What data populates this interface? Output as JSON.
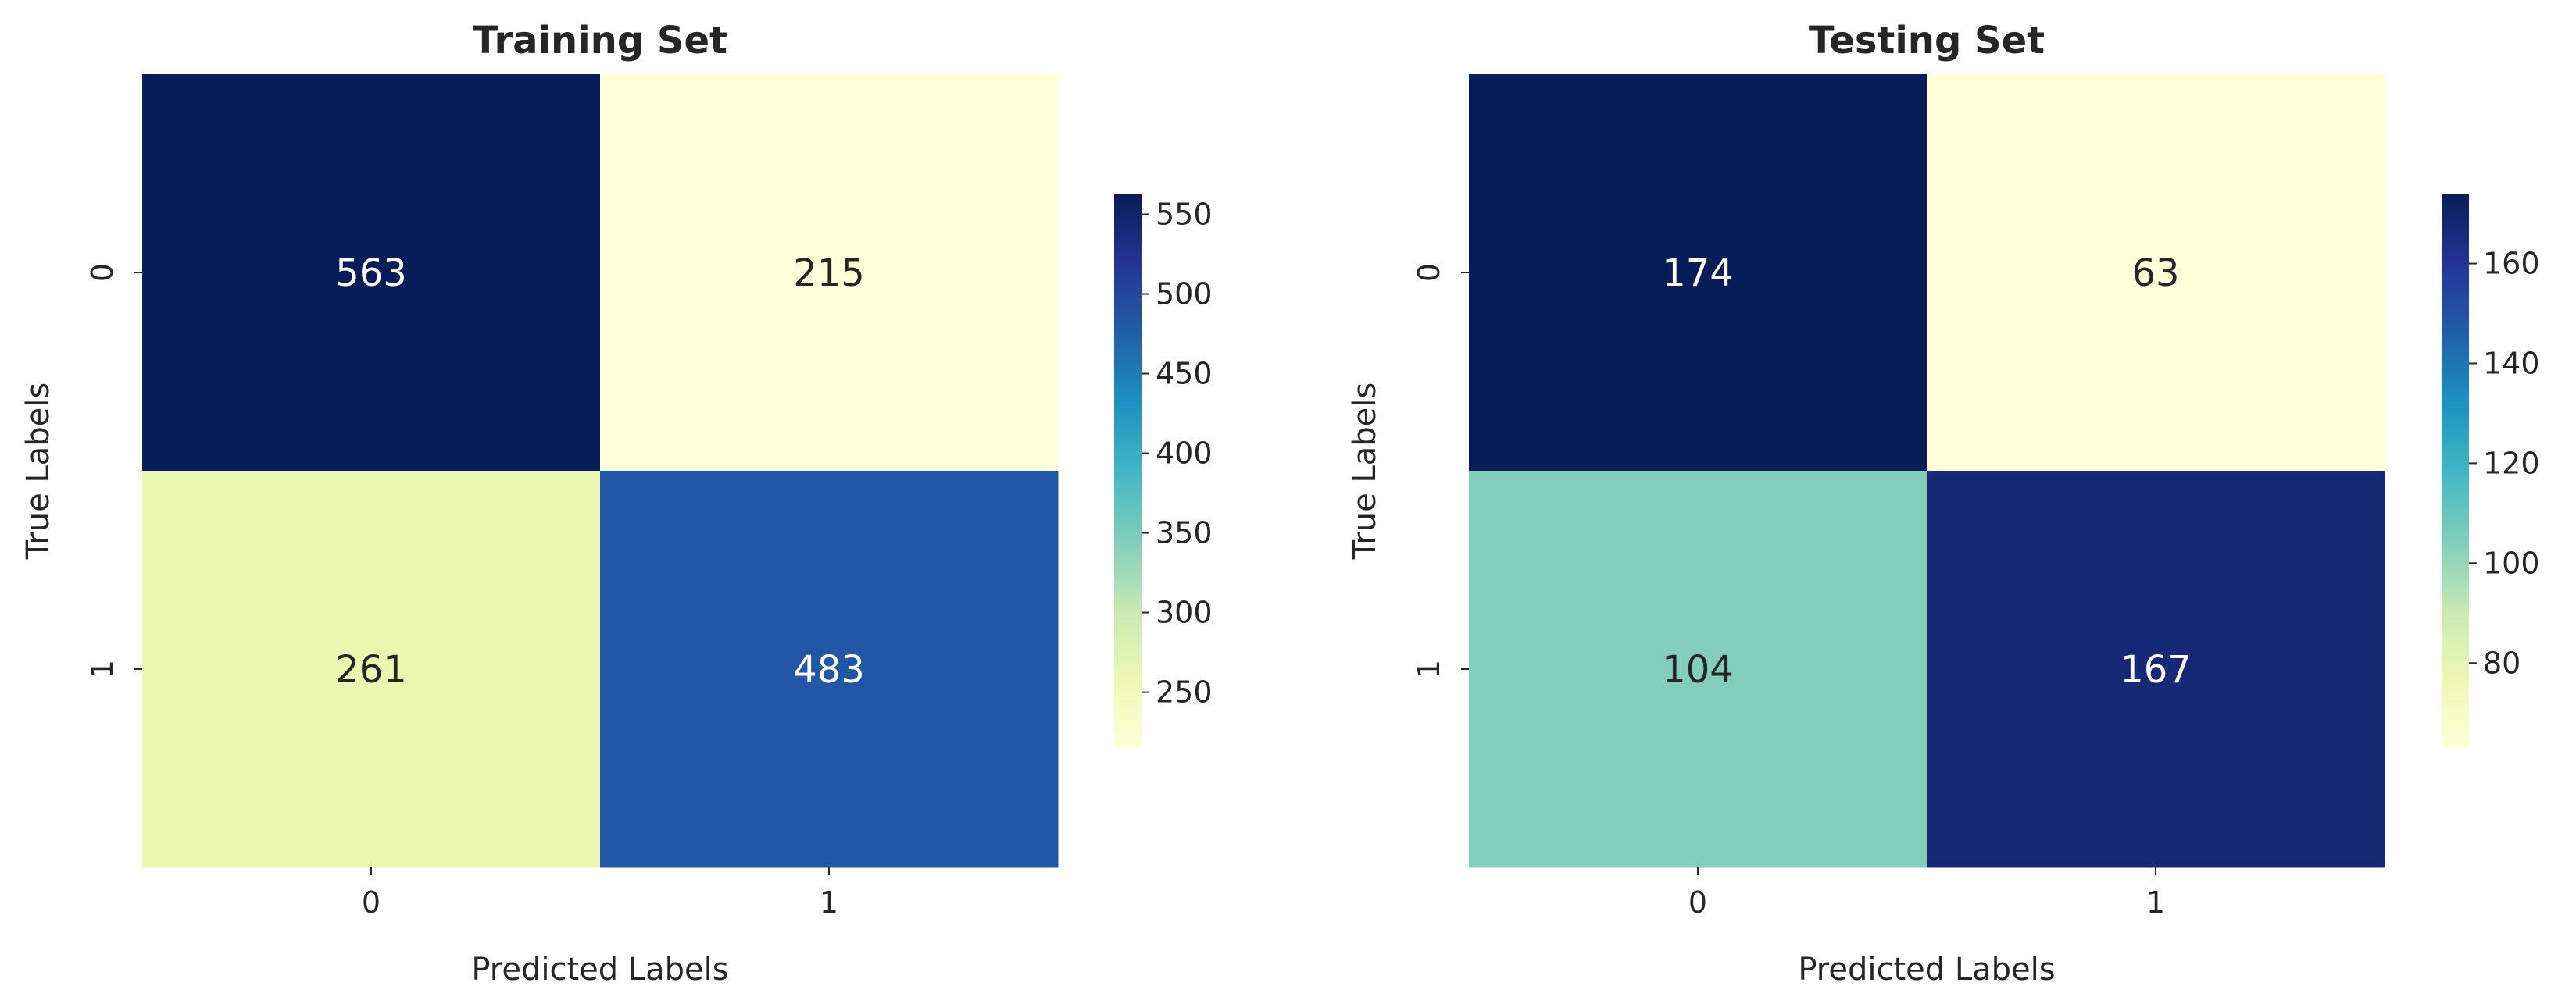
{
  "chart_data": [
    {
      "type": "heatmap",
      "title": "Training Set",
      "xlabel": "Predicted Labels",
      "ylabel": "True Labels",
      "x_categories": [
        "0",
        "1"
      ],
      "y_categories": [
        "0",
        "1"
      ],
      "values": [
        [
          563,
          215
        ],
        [
          261,
          483
        ]
      ],
      "colormap": "YlGnBu",
      "colorbar": {
        "range": [
          215,
          563
        ],
        "ticks": [
          250,
          300,
          350,
          400,
          450,
          500,
          550
        ]
      }
    },
    {
      "type": "heatmap",
      "title": "Testing Set",
      "xlabel": "Predicted Labels",
      "ylabel": "True Labels",
      "x_categories": [
        "0",
        "1"
      ],
      "y_categories": [
        "0",
        "1"
      ],
      "values": [
        [
          174,
          63
        ],
        [
          104,
          167
        ]
      ],
      "colormap": "YlGnBu",
      "colorbar": {
        "range": [
          63,
          174
        ],
        "ticks": [
          80,
          100,
          120,
          140,
          160
        ]
      }
    }
  ]
}
